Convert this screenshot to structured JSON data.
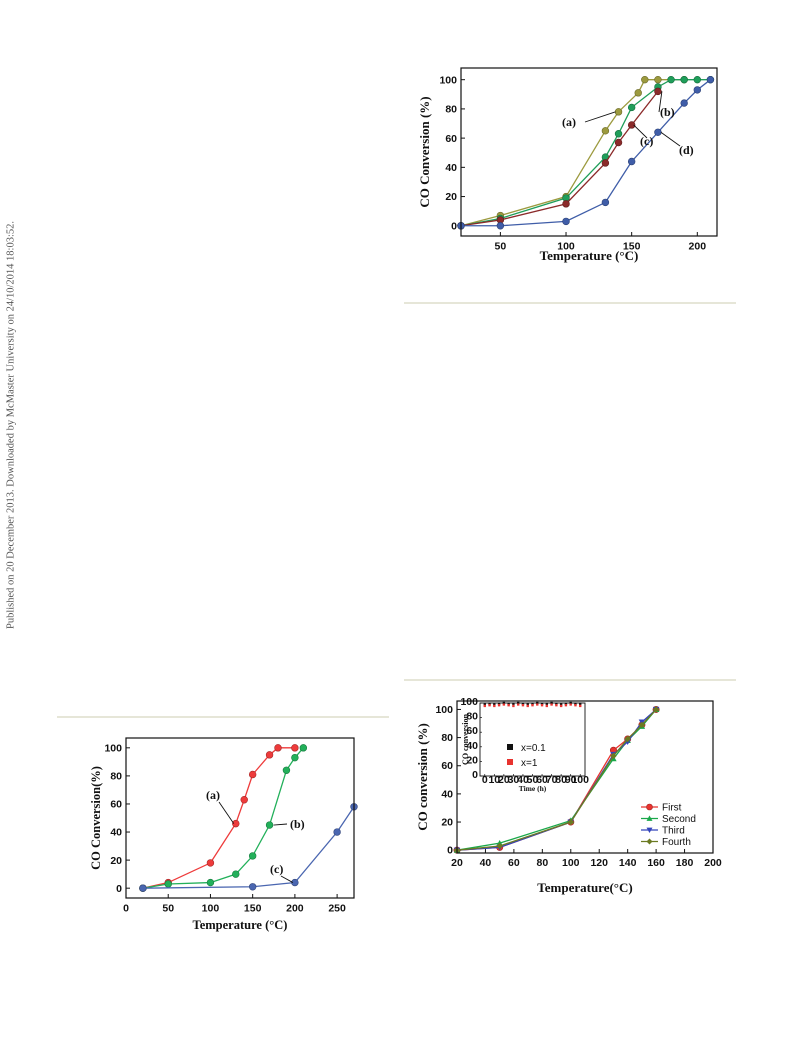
{
  "page": {
    "side_stamp": "Published on 20 December 2013. Downloaded by McMaster University on 24/10/2014 18:03:52."
  },
  "chart_data": [
    {
      "type": "line",
      "xlabel": "Temperature (°C)",
      "ylabel": "CO Conversion (%)",
      "xlim": [
        20,
        215
      ],
      "ylim": [
        -7,
        108
      ],
      "xticks": [
        50,
        100,
        150,
        200
      ],
      "yticks": [
        0,
        20,
        40,
        60,
        80,
        100
      ],
      "grid": false,
      "series": [
        {
          "name": "(a)",
          "color": "#9c9a3e",
          "x": [
            20,
            50,
            100,
            130,
            140,
            155,
            160,
            170,
            190
          ],
          "y": [
            0,
            7,
            20,
            65,
            78,
            91,
            100,
            100,
            100
          ]
        },
        {
          "name": "(b)",
          "color": "#1f9e5a",
          "x": [
            20,
            50,
            100,
            130,
            140,
            150,
            170,
            180,
            190,
            200,
            210
          ],
          "y": [
            0,
            5,
            19,
            47,
            63,
            81,
            95,
            100,
            100,
            100,
            100
          ]
        },
        {
          "name": "(c)",
          "color": "#8b2a2a",
          "x": [
            20,
            50,
            100,
            130,
            140,
            150,
            170
          ],
          "y": [
            0,
            4,
            15,
            43,
            57,
            69,
            92
          ]
        },
        {
          "name": "(d)",
          "color": "#3f5da8",
          "x": [
            20,
            50,
            100,
            130,
            150,
            170,
            190,
            200,
            210
          ],
          "y": [
            0,
            0,
            3,
            16,
            44,
            64,
            84,
            93,
            100
          ]
        }
      ],
      "annotations": [
        "(a)",
        "(b)",
        "(c)",
        "(d)"
      ]
    },
    {
      "type": "line",
      "xlabel": "Temperature (°C)",
      "ylabel": "CO Conversion(%)",
      "xlim": [
        0,
        270
      ],
      "ylim": [
        -7,
        107
      ],
      "xticks": [
        0,
        50,
        100,
        150,
        200,
        250
      ],
      "yticks": [
        0,
        20,
        40,
        60,
        80,
        100
      ],
      "grid": false,
      "series": [
        {
          "name": "(a)",
          "color": "#ee3b3b",
          "x": [
            20,
            50,
            100,
            130,
            140,
            150,
            170,
            180,
            200
          ],
          "y": [
            0,
            4,
            18,
            46,
            63,
            81,
            95,
            100,
            100
          ]
        },
        {
          "name": "(b)",
          "color": "#22b05a",
          "x": [
            20,
            50,
            100,
            130,
            150,
            170,
            190,
            200,
            210
          ],
          "y": [
            0,
            3,
            4,
            10,
            23,
            45,
            84,
            93,
            100
          ]
        },
        {
          "name": "(c)",
          "color": "#4a66b0",
          "x": [
            20,
            150,
            200,
            250,
            270
          ],
          "y": [
            0,
            1,
            4,
            40,
            58
          ]
        }
      ],
      "annotations": [
        "(a)",
        "(b)",
        "(c)"
      ]
    },
    {
      "type": "line",
      "xlabel": "Temperature(°C)",
      "ylabel": "CO conversion (%)",
      "xlim": [
        20,
        200
      ],
      "ylim": [
        -2,
        106
      ],
      "xticks": [
        20,
        40,
        60,
        80,
        100,
        120,
        140,
        160,
        180,
        200
      ],
      "yticks": [
        0,
        20,
        40,
        60,
        80,
        100
      ],
      "grid": false,
      "legend": "bottom-right",
      "series": [
        {
          "name": "First",
          "color": "#e8332f",
          "marker": "circle",
          "x": [
            20,
            50,
            100,
            130,
            140,
            150,
            160
          ],
          "y": [
            0,
            2,
            20,
            71,
            79,
            89,
            100
          ]
        },
        {
          "name": "Second",
          "color": "#1aa84a",
          "marker": "triangle-up",
          "x": [
            20,
            50,
            100,
            130,
            140,
            150,
            160
          ],
          "y": [
            0,
            5,
            21,
            65,
            78,
            88,
            100
          ]
        },
        {
          "name": "Third",
          "color": "#3344bb",
          "marker": "triangle-down",
          "x": [
            20,
            50,
            100,
            130,
            140,
            150,
            160
          ],
          "y": [
            0,
            2,
            20,
            68,
            77,
            91,
            100
          ]
        },
        {
          "name": "Fourth",
          "color": "#6b7a22",
          "marker": "diamond",
          "x": [
            20,
            50,
            100,
            130,
            140,
            150,
            160
          ],
          "y": [
            0,
            3,
            20,
            67,
            79,
            89,
            100
          ]
        }
      ],
      "inset": {
        "type": "scatter",
        "xlabel": "Time (h)",
        "ylabel": "CO conversion",
        "xlim": [
          -5,
          105
        ],
        "ylim": [
          0,
          100
        ],
        "xticks": [
          0,
          10,
          20,
          30,
          40,
          50,
          60,
          70,
          80,
          90,
          100
        ],
        "yticks": [
          0,
          20,
          40,
          60,
          80,
          100
        ],
        "legend": "center-left",
        "series": [
          {
            "name": "x=0.1",
            "color": "#111111",
            "marker": "square",
            "x": [
              0,
              5,
              10,
              15,
              20,
              25,
              30,
              35,
              40,
              45,
              50,
              55,
              60,
              65,
              70,
              75,
              80,
              85,
              90,
              95,
              100
            ],
            "y": [
              98,
              99,
              98,
              99,
              100,
              99,
              99,
              100,
              99,
              98,
              99,
              100,
              99,
              99,
              100,
              99,
              98,
              99,
              100,
              99,
              99
            ]
          },
          {
            "name": "x=1",
            "color": "#e8332f",
            "marker": "square",
            "x": [
              0,
              5,
              10,
              15,
              20,
              25,
              30,
              35,
              40,
              45,
              50,
              55,
              60,
              65,
              70,
              75,
              80,
              85,
              90,
              95,
              100
            ],
            "y": [
              96,
              97,
              96,
              97,
              98,
              97,
              96,
              98,
              97,
              96,
              97,
              98,
              97,
              96,
              98,
              97,
              96,
              97,
              98,
              97,
              96
            ]
          }
        ]
      }
    }
  ]
}
